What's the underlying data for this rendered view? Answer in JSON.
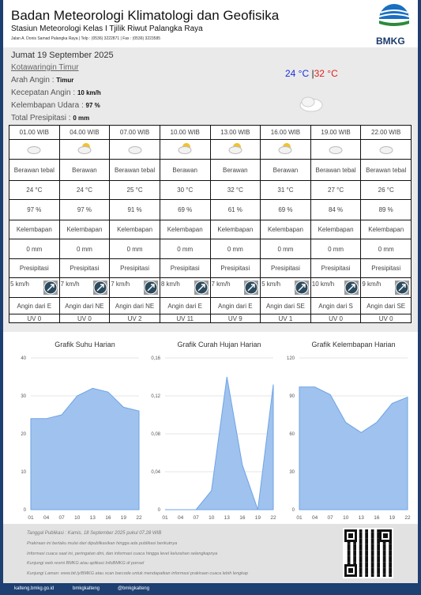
{
  "header": {
    "title": "Badan Meteorologi Klimatologi dan Geofisika",
    "subtitle": "Stasiun Meteorologi Kelas I Tjilik Riwut Palangka Raya",
    "address": "Jalan A. Donis Samad Palangka Raya | Telp : (0536) 3222871 | Fax : (0536) 3223585",
    "logo_text": "BMKG"
  },
  "info": {
    "date": "Jumat 19 September 2025",
    "region": "Kotawaringin Timur",
    "fields": [
      {
        "label": "Arah Angin :",
        "value": "Timur"
      },
      {
        "label": "Kecepatan Angin :",
        "value": "10 km/h"
      },
      {
        "label": "Kelembapan Udara :",
        "value": "97 %"
      },
      {
        "label": "Total Presipitasi :",
        "value": "0 mm"
      }
    ],
    "temp_min": "24 °C",
    "separator": "|",
    "temp_max": "32 °C"
  },
  "table": {
    "columns": [
      {
        "time": "01.00 WIB",
        "desc": "Berawan tebal",
        "temp": "24 °C",
        "humidity": "97 %",
        "humidity_label": "Kelembapan",
        "precip": "0 mm",
        "precip_label": "Presipitasi",
        "wind_speed": "5 km/h",
        "wind_dir": "Angin dari E",
        "uv": "UV 0"
      },
      {
        "time": "04.00 WIB",
        "desc": "Berawan",
        "temp": "24 °C",
        "humidity": "97 %",
        "humidity_label": "Kelembapan",
        "precip": "0 mm",
        "precip_label": "Presipitasi",
        "wind_speed": "7 km/h",
        "wind_dir": "Angin dari NE",
        "uv": "UV 0"
      },
      {
        "time": "07.00 WIB",
        "desc": "Berawan tebal",
        "temp": "25 °C",
        "humidity": "91 %",
        "humidity_label": "Kelembapan",
        "precip": "0 mm",
        "precip_label": "Presipitasi",
        "wind_speed": "7 km/h",
        "wind_dir": "Angin dari NE",
        "uv": "UV 2"
      },
      {
        "time": "10.00 WIB",
        "desc": "Berawan",
        "temp": "30 °C",
        "humidity": "69 %",
        "humidity_label": "Kelembapan",
        "precip": "0 mm",
        "precip_label": "Presipitasi",
        "wind_speed": "8 km/h",
        "wind_dir": "Angin dari E",
        "uv": "UV 11"
      },
      {
        "time": "13.00 WIB",
        "desc": "Berawan",
        "temp": "32 °C",
        "humidity": "61 %",
        "humidity_label": "Kelembapan",
        "precip": "0 mm",
        "precip_label": "Presipitasi",
        "wind_speed": "7 km/h",
        "wind_dir": "Angin dari E",
        "uv": "UV 9"
      },
      {
        "time": "16.00 WIB",
        "desc": "Berawan",
        "temp": "31 °C",
        "humidity": "69 %",
        "humidity_label": "Kelembapan",
        "precip": "0 mm",
        "precip_label": "Presipitasi",
        "wind_speed": "5 km/h",
        "wind_dir": "Angin dari SE",
        "uv": "UV 1"
      },
      {
        "time": "19.00 WIB",
        "desc": "Berawan tebal",
        "temp": "27 °C",
        "humidity": "84 %",
        "humidity_label": "Kelembapan",
        "precip": "0 mm",
        "precip_label": "Presipitasi",
        "wind_speed": "10 km/h",
        "wind_dir": "Angin dari S",
        "uv": "UV 0"
      },
      {
        "time": "22.00 WIB",
        "desc": "Berawan tebal",
        "temp": "26 °C",
        "humidity": "89 %",
        "humidity_label": "Kelembapan",
        "precip": "0 mm",
        "precip_label": "Presipitasi",
        "wind_speed": "9 km/h",
        "wind_dir": "Angin dari SE",
        "uv": "UV 0"
      }
    ]
  },
  "chart_data": [
    {
      "type": "area",
      "title": "Grafik Suhu Harian",
      "categories": [
        "01",
        "04",
        "07",
        "10",
        "13",
        "16",
        "19",
        "22"
      ],
      "values": [
        24,
        24,
        25,
        30,
        32,
        31,
        27,
        26
      ],
      "color": "#9fc3ee",
      "ylim": [
        0,
        40
      ],
      "yticks": [
        0,
        10,
        20,
        30,
        40
      ],
      "grid": true
    },
    {
      "type": "area",
      "title": "Grafik Curah Hujan Harian",
      "categories": [
        "01",
        "04",
        "07",
        "10",
        "13",
        "16",
        "19",
        "22"
      ],
      "values": [
        0,
        0,
        0,
        0.02,
        0.14,
        0.047,
        0,
        0.132
      ],
      "color": "#9fc3ee",
      "ylim": [
        0,
        0.16
      ],
      "yticks": [
        0,
        {
          "value": 0.04,
          "label": "0,04"
        },
        {
          "value": 0.08,
          "label": "0,08"
        },
        {
          "value": 0.12,
          "label": "0,12"
        },
        {
          "value": 0.16,
          "label": "0,16"
        }
      ],
      "grid": true
    },
    {
      "type": "area",
      "title": "Grafik Kelembapan Harian",
      "categories": [
        "01",
        "04",
        "07",
        "10",
        "13",
        "16",
        "19",
        "22"
      ],
      "values": [
        97,
        97,
        91,
        69,
        61,
        69,
        84,
        89
      ],
      "color": "#9fc3ee",
      "ylim": [
        0,
        120
      ],
      "yticks": [
        0,
        30,
        60,
        90,
        120
      ],
      "grid": true
    }
  ],
  "footer": {
    "published": "Tanggal Publikasi : Kamis, 18 September 2025 pukul 07.28 WIB",
    "notes": [
      "Prakiraan ini berlaku mulai dari dipublikasikan hingga ada publikasi berikutnya",
      "Informasi cuaca saat ini, peringatan dini, dan informasi cuaca hingga level kelurahan selengkapnya",
      "Kunjungi web resmi BMKG atau aplikasi InfoBMKG di ponsel",
      "Kunjungi Laman: www.bit.ly/BMKG atau scan barcode untuk mendapatkan informasi prakiraan cuaca lebih lengkap"
    ],
    "links": [
      "kalteng.bmkg.go.id",
      "bmkgkalteng",
      "@bmkgkalteng"
    ]
  }
}
